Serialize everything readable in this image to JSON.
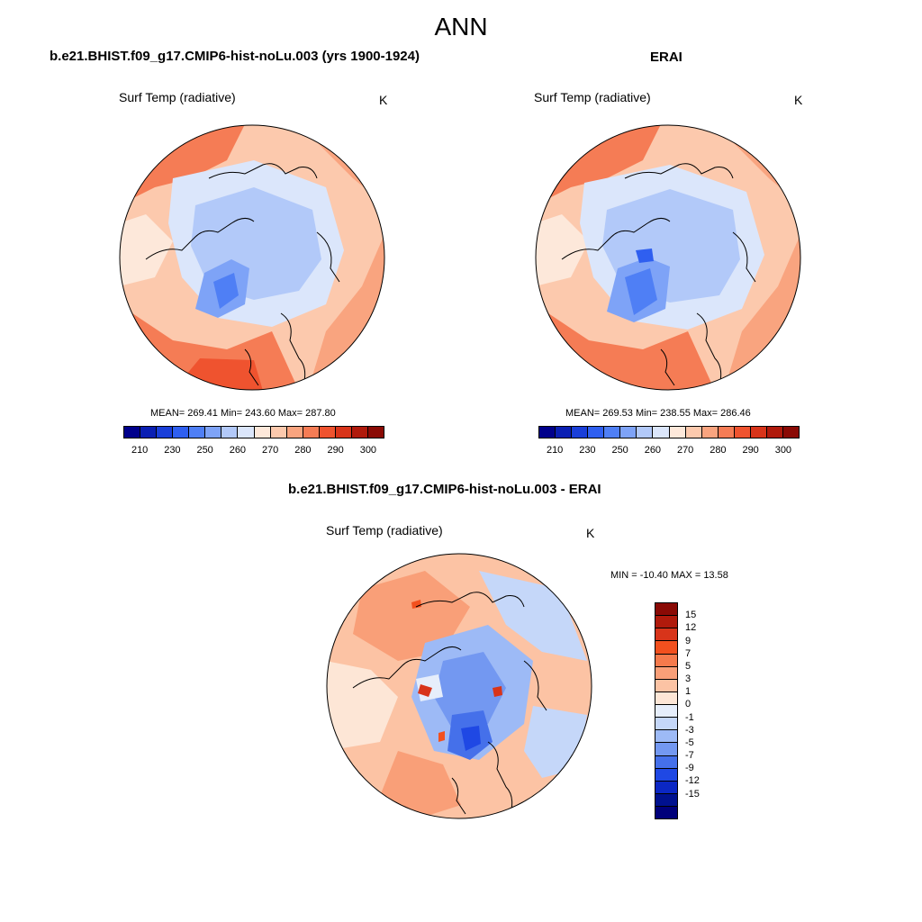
{
  "main_title": "ANN",
  "panels": [
    {
      "title": "b.e21.BHIST.f09_g17.CMIP6-hist-noLu.003 (yrs 1900-1924)",
      "var_label": "Surf Temp (radiative)",
      "unit": "K",
      "stats": "MEAN= 269.41   Min= 243.60   Max= 287.80"
    },
    {
      "title": "ERAI",
      "var_label": "Surf Temp (radiative)",
      "unit": "K",
      "stats": "MEAN= 269.53   Min= 238.55   Max= 286.46"
    },
    {
      "title": "b.e21.BHIST.f09_g17.CMIP6-hist-noLu.003 - ERAI",
      "var_label": "Surf Temp (radiative)",
      "unit": "K",
      "stats": "MIN = -10.40 MAX =  13.58"
    }
  ],
  "abs_colorbar": {
    "colors": [
      "#00008b",
      "#0a1fb3",
      "#1a3fd9",
      "#2f5ff0",
      "#4f7ff5",
      "#7ea3f7",
      "#b2c9f9",
      "#dbe6fb",
      "#fde8da",
      "#fcc9ad",
      "#f9a47f",
      "#f57c55",
      "#ef532f",
      "#d8341a",
      "#b01a0c",
      "#8a0a05"
    ],
    "ticks": [
      "210",
      "230",
      "250",
      "260",
      "270",
      "280",
      "290",
      "300"
    ]
  },
  "diff_colorbar": {
    "colors_top_to_bottom": [
      "#8a0a05",
      "#b01a0c",
      "#d8341a",
      "#f2501e",
      "#f57a4c",
      "#f99f78",
      "#fcc3a4",
      "#fde6d6",
      "#e6eefb",
      "#c5d7f9",
      "#9dbaf6",
      "#7398f1",
      "#4570ea",
      "#1f48e4",
      "#0b27c4",
      "#00118f",
      "#00007a"
    ],
    "ticks": [
      "15",
      "12",
      "9",
      "7",
      "5",
      "3",
      "1",
      "0",
      "-1",
      "-3",
      "-5",
      "-7",
      "-9",
      "-12",
      "-15"
    ]
  }
}
